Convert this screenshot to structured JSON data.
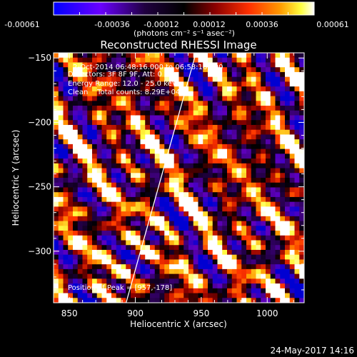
{
  "colorbar": {
    "ticks": [
      "-0.00061",
      "-0.00036",
      "-0.00012",
      "0.00012",
      "0.00036",
      "0.00061"
    ],
    "unit_label": "(photons cm⁻² s⁻¹ asec⁻²)",
    "range": [
      -0.00061,
      0.00061
    ],
    "colors": [
      "#0000ff",
      "#7f00ff",
      "#000000",
      "#7f0000",
      "#ff3000",
      "#ff9000",
      "#ffff40",
      "#ffffff"
    ]
  },
  "plot": {
    "title": "Reconstructed RHESSI Image",
    "info_lines": [
      "2-Oct-2014 06:48:16.000 to 06:58:16.000",
      "Detectors: 3F 8F 9F, Att: 0",
      "Energy Range: 12.0 - 25.0 keV",
      "Clean    Total counts: 8.29E+04"
    ],
    "peak_label": "Position of Peak = [957,-178]",
    "footer_date": "24-May-2017 14:16"
  },
  "chart_data": {
    "type": "heatmap",
    "title": "Reconstructed RHESSI Image",
    "xlabel": "Heliocentric X (arcsec)",
    "ylabel": "Heliocentric Y (arcsec)",
    "xlim": [
      838,
      1028
    ],
    "ylim": [
      -340,
      -146
    ],
    "xticks": [
      850,
      900,
      950,
      1000
    ],
    "yticks": [
      -150,
      -200,
      -250,
      -300
    ],
    "limb_line": {
      "x": [
        893,
        946
      ],
      "y": [
        -340,
        -146
      ]
    },
    "peak": {
      "x": 957,
      "y": -178
    },
    "grid": false
  }
}
